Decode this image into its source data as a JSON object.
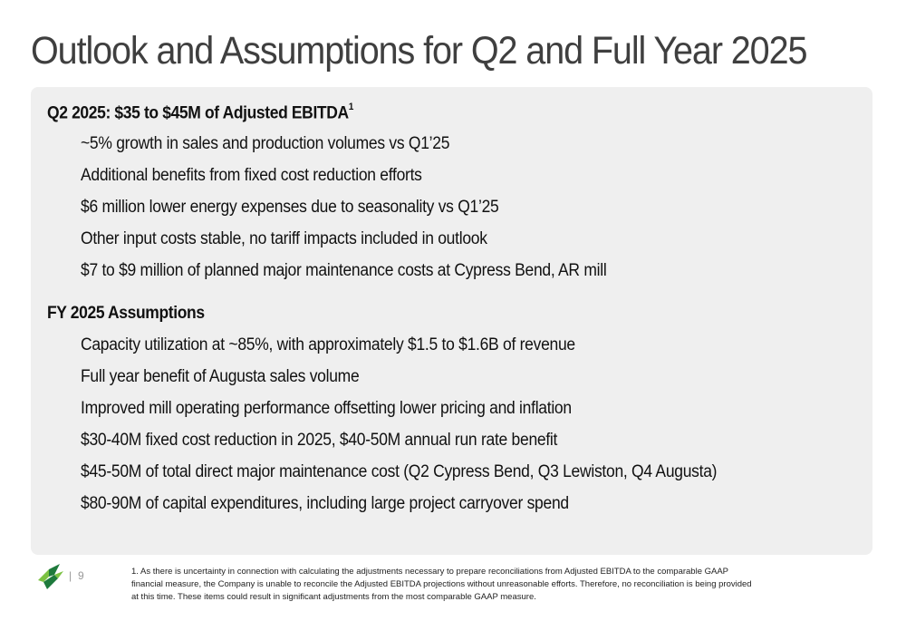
{
  "title": "Outlook and Assumptions for Q2 and Full Year 2025",
  "q2": {
    "heading": "Q2 2025: $35 to $45M of Adjusted EBITDA",
    "heading_sup": "1",
    "items": [
      "~5% growth in sales and production volumes vs Q1’25",
      "Additional benefits from fixed cost reduction efforts",
      "$6 million lower energy expenses due to seasonality vs Q1’25",
      "Other input costs stable, no tariff impacts included in outlook",
      "$7 to $9 million of planned major maintenance costs at Cypress Bend, AR mill"
    ]
  },
  "fy": {
    "heading": "FY 2025 Assumptions",
    "items": [
      "Capacity utilization at ~85%, with approximately $1.5 to $1.6B of revenue",
      "Full year benefit of Augusta sales volume",
      "Improved mill operating performance offsetting lower pricing and inflation",
      "$30-40M fixed cost reduction in 2025, $40-50M annual run rate benefit",
      "$45-50M of total direct major maintenance cost (Q2 Cypress Bend, Q3 Lewiston, Q4 Augusta)",
      "$80-90M of capital expenditures, including large project carryover spend"
    ]
  },
  "footer": {
    "separator": "|",
    "page_number": "9",
    "footnote": "1. As there is uncertainty in connection with calculating the adjustments necessary to prepare reconciliations from Adjusted EBITDA to the comparable GAAP financial measure, the Company is unable to reconcile the Adjusted EBITDA projections without unreasonable efforts. Therefore, no reconciliation is being provided at this time. These items could result in significant adjustments from the most comparable GAAP measure."
  },
  "colors": {
    "panel_bg": "#efefef",
    "title": "#3f3f3f",
    "logo_dark": "#1e7a3c",
    "logo_light": "#7cc243"
  },
  "logo": {
    "icon": "company-leaf-logo"
  }
}
